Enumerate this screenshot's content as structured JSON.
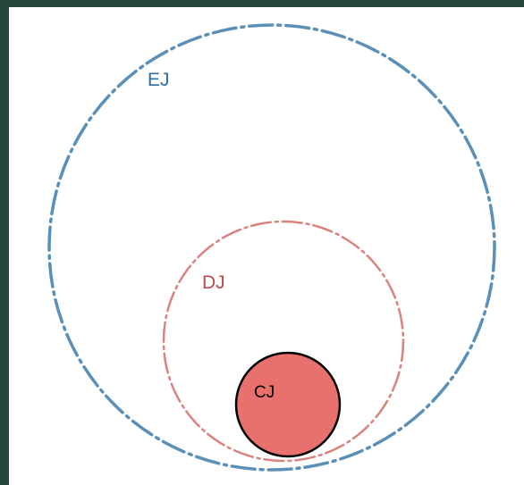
{
  "diagram": {
    "circles": [
      {
        "label": "EJ",
        "color": "#5a8fb8",
        "style": "dash-dot"
      },
      {
        "label": "DJ",
        "color": "#d9837e",
        "style": "dash-dot"
      },
      {
        "label": "CJ",
        "color": "#e8716d",
        "stroke": "#000000",
        "style": "solid-filled"
      }
    ]
  }
}
